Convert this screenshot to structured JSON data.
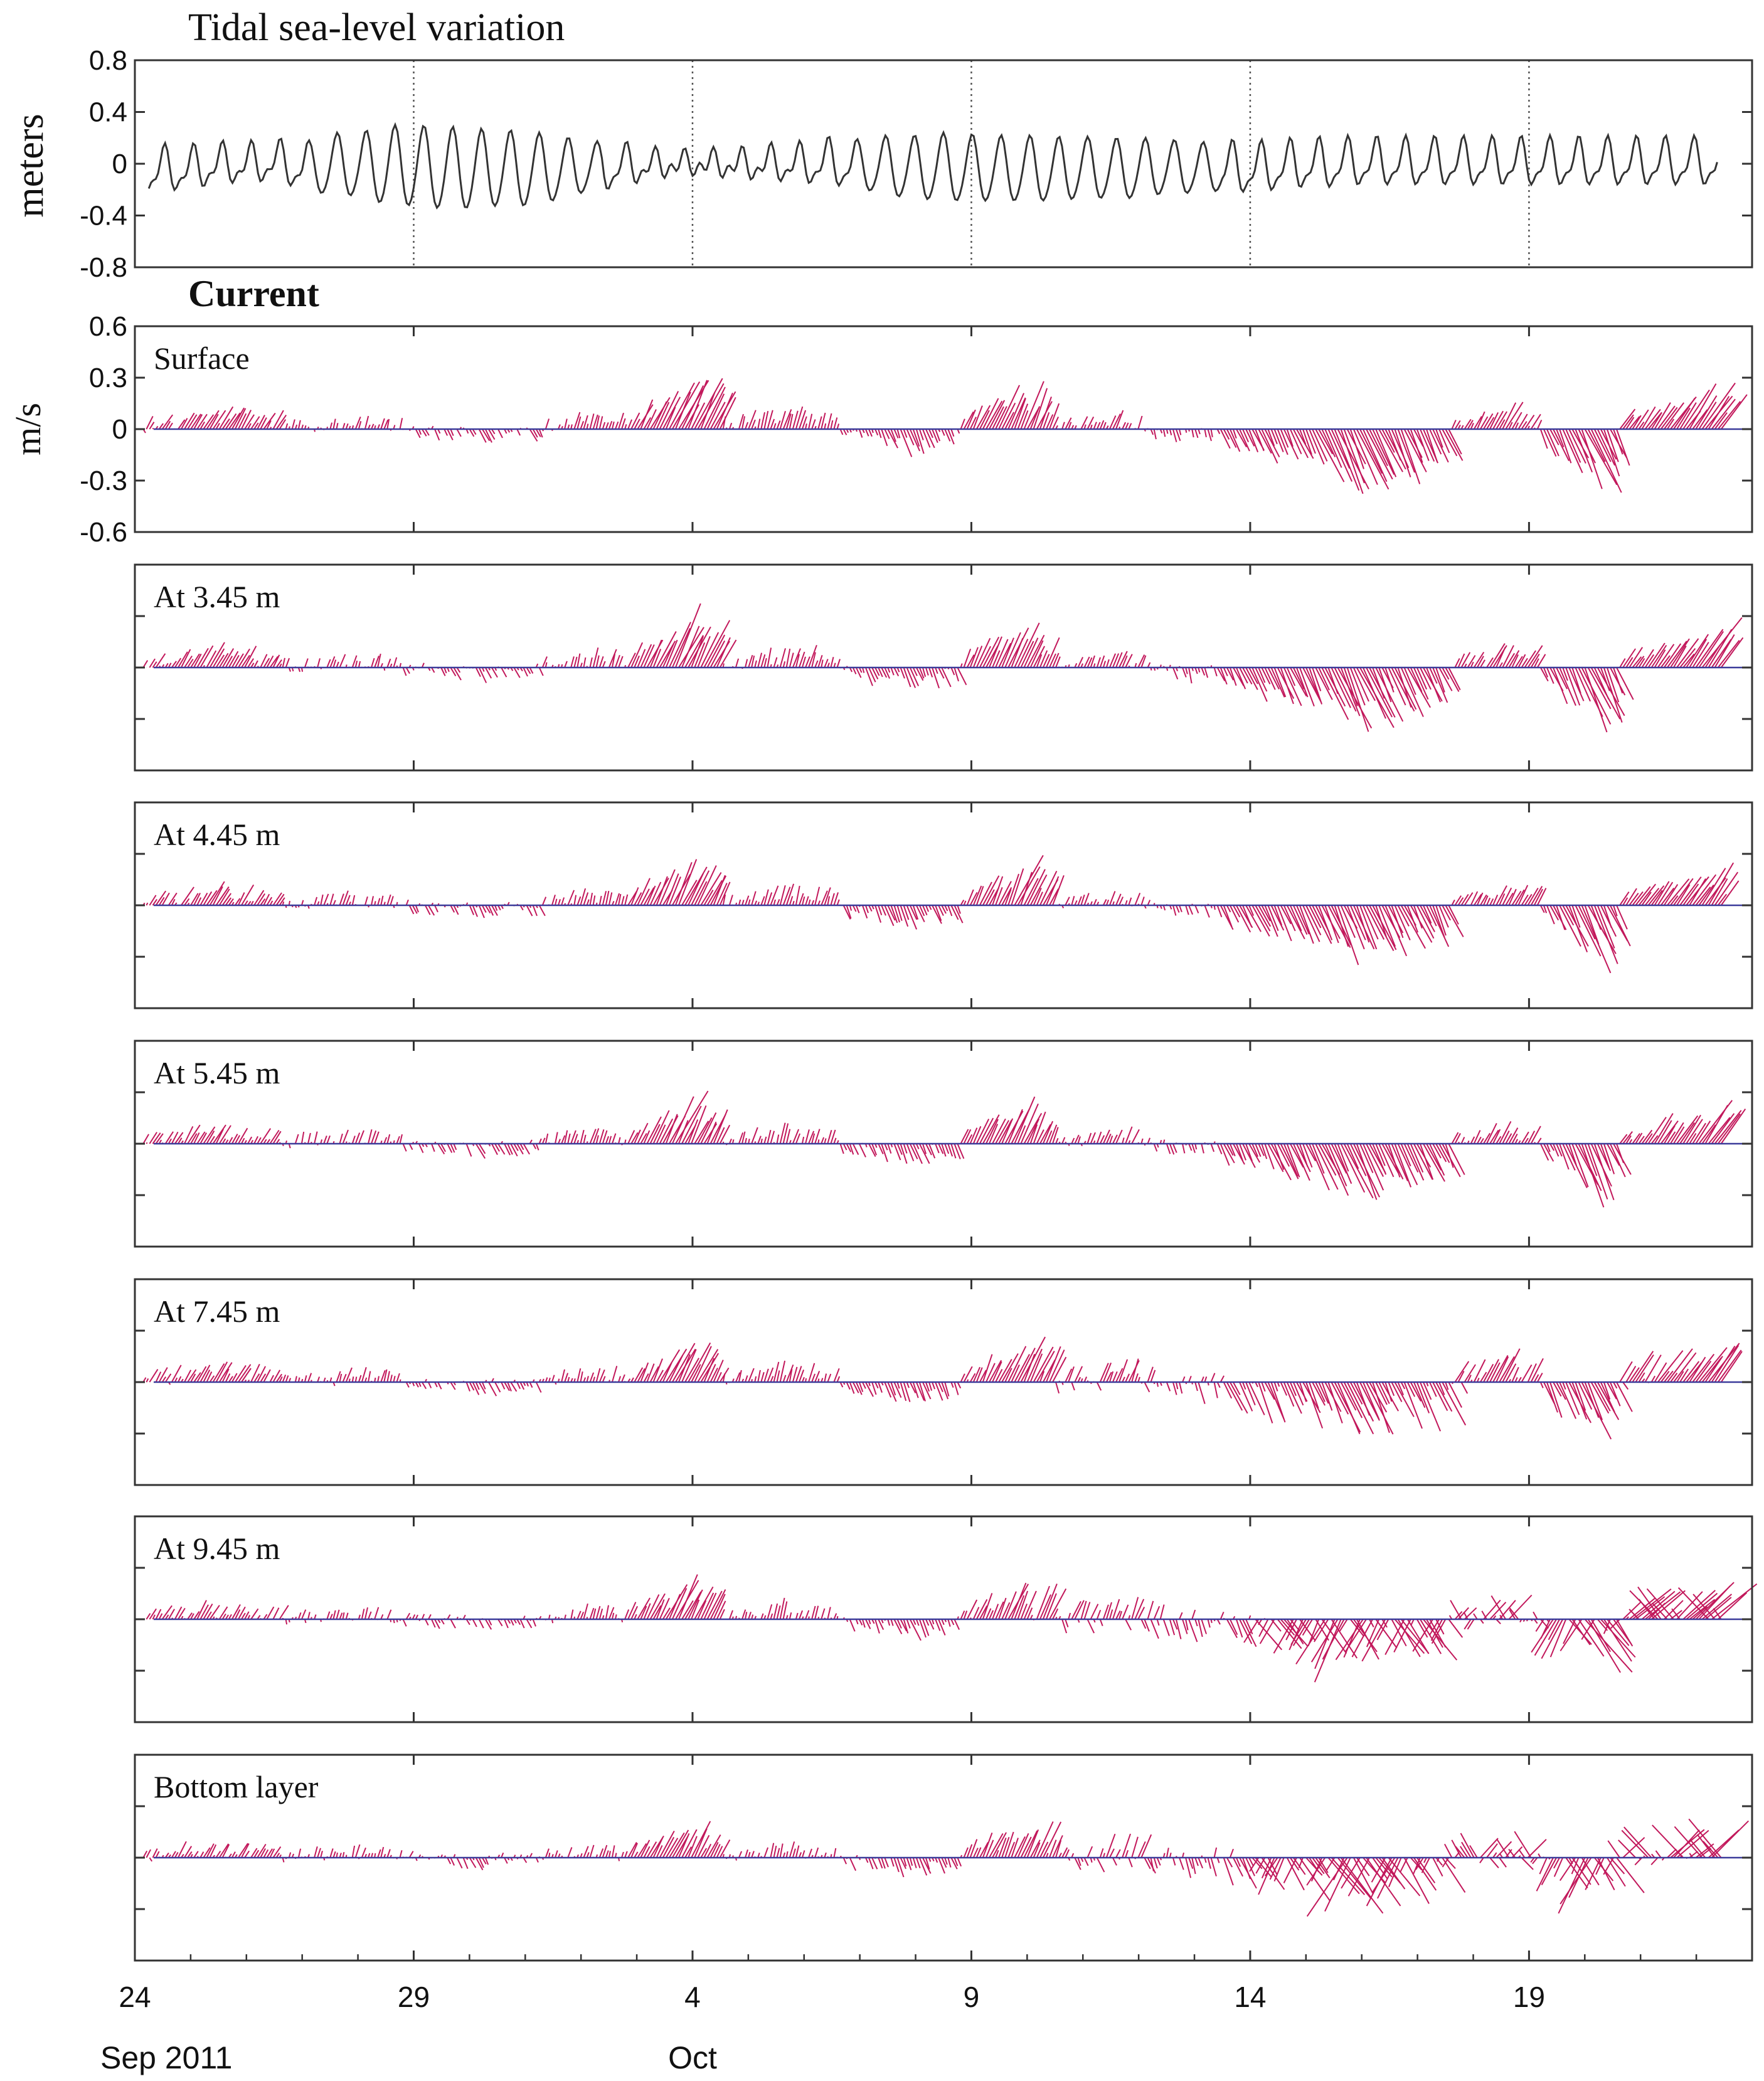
{
  "chart_data": {
    "type": "line",
    "time_axis": {
      "tick_labels": [
        "24",
        "29",
        "4",
        "9",
        "14",
        "19"
      ],
      "month_labels": [
        "Sep  2011",
        "Oct"
      ],
      "tick_dates": [
        "2011-09-24",
        "2011-09-29",
        "2011-10-04",
        "2011-10-09",
        "2011-10-14",
        "2011-10-19"
      ],
      "range": [
        "2011-09-24",
        "2011-10-23"
      ]
    },
    "colors": {
      "stick": "#c2185b",
      "zero_line": "#3b3b9a",
      "tide_line": "#333333",
      "axis": "#333333"
    },
    "sea_level": {
      "title": "Tidal sea-level variation",
      "ylabel": "meters",
      "ylim": [
        -0.8,
        0.8
      ],
      "yticks": [
        "0.8",
        "0.4",
        "0",
        "-0.4",
        "-0.8"
      ],
      "grid": "vertical dotted lines at tick dates",
      "start_date": "2011-09-24",
      "interval_hours": 12,
      "highs": [
        0.06,
        0.1,
        0.1,
        0.12,
        0.12,
        0.14,
        0.14,
        0.22,
        0.22,
        0.28,
        0.28,
        0.27,
        0.26,
        0.24,
        0.24,
        0.2,
        0.17,
        0.14,
        0.1,
        0.06,
        0.06,
        0.07,
        0.08,
        0.11,
        0.12,
        0.16,
        0.17,
        0.2,
        0.2,
        0.22,
        0.21,
        0.2,
        0.2,
        0.19,
        0.19,
        0.18,
        0.18,
        0.17,
        0.15,
        0.14,
        0.12,
        0.14,
        0.15,
        0.16,
        0.16
      ],
      "lows": [
        -0.26,
        -0.2,
        -0.2,
        -0.14,
        -0.14,
        -0.12,
        -0.2,
        -0.26,
        -0.26,
        -0.33,
        -0.34,
        -0.36,
        -0.36,
        -0.34,
        -0.34,
        -0.3,
        -0.24,
        -0.2,
        -0.14,
        -0.08,
        -0.06,
        -0.08,
        -0.1,
        -0.12,
        -0.14,
        -0.16,
        -0.2,
        -0.26,
        -0.28,
        -0.3,
        -0.3,
        -0.3,
        -0.3,
        -0.3,
        -0.28,
        -0.28,
        -0.28,
        -0.24,
        -0.24,
        -0.22,
        -0.22,
        -0.2,
        -0.18,
        -0.18,
        -0.16
      ]
    },
    "current": {
      "title": "Current",
      "ylabel": "m/s",
      "ylim": [
        -0.6,
        0.6
      ],
      "yticks": [
        "0.6",
        "0.3",
        "0",
        "-0.3",
        "-0.6"
      ],
      "interval_hours": 3,
      "segments_days": [
        [
          0,
          2.6,
          0.09,
          0.6
        ],
        [
          2.6,
          4.8,
          0.045,
          0.3
        ],
        [
          4.8,
          7.3,
          -0.04,
          0.5
        ],
        [
          7.3,
          8.8,
          0.07,
          0.3
        ],
        [
          8.8,
          10.5,
          0.26,
          0.5
        ],
        [
          10.5,
          12.6,
          0.09,
          0.3
        ],
        [
          12.6,
          14.8,
          -0.1,
          0.4
        ],
        [
          14.8,
          16.5,
          0.22,
          0.45
        ],
        [
          16.5,
          18.2,
          0.06,
          0.4
        ],
        [
          18.2,
          19.4,
          -0.04,
          0.3
        ],
        [
          19.4,
          23.6,
          -0.28,
          0.45
        ],
        [
          23.6,
          25.2,
          0.1,
          0.55
        ],
        [
          25.2,
          26.6,
          -0.3,
          0.45
        ],
        [
          26.6,
          29.3,
          0.2,
          0.7
        ]
      ],
      "panels": [
        {
          "label": "Surface",
          "scale": 1.0
        },
        {
          "label": "At 3.45 m",
          "scale": 0.97
        },
        {
          "label": "At 4.45 m",
          "scale": 0.92
        },
        {
          "label": "At 5.45 m",
          "scale": 0.88
        },
        {
          "label": "At 7.45 m",
          "scale": 0.82
        },
        {
          "label": "At 9.45 m",
          "scale": 0.74
        },
        {
          "label": "Bottom layer",
          "scale": 0.68
        }
      ]
    }
  }
}
